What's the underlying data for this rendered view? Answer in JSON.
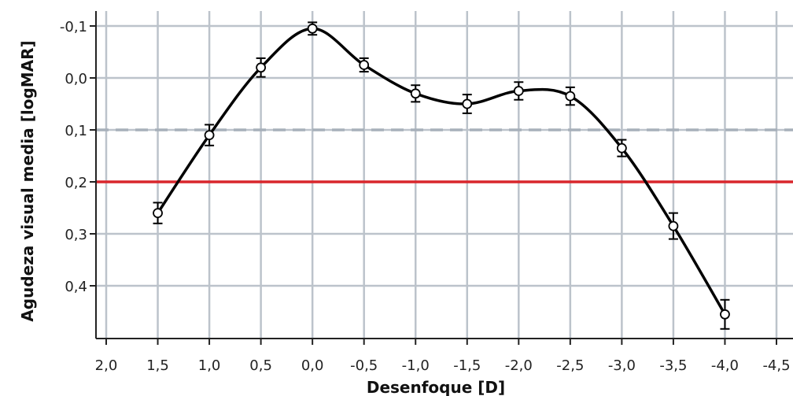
{
  "chart_data": {
    "type": "line",
    "title": "",
    "xlabel": "Desenfoque [D]",
    "ylabel": "Agudeza visual media [logMAR]",
    "xlim": [
      2.0,
      -4.5
    ],
    "ylim": [
      -0.1,
      0.5
    ],
    "y_inverted": true,
    "grid": true,
    "x_ticks": [
      2.0,
      1.5,
      1.0,
      0.5,
      0.0,
      -0.5,
      -1.0,
      -1.5,
      -2.0,
      -2.5,
      -3.0,
      -3.5,
      -4.0,
      -4.5
    ],
    "x_tick_labels": [
      "2,0",
      "1,5",
      "1,0",
      "0,5",
      "0,0",
      "-0,5",
      "-1,0",
      "-1,5",
      "-2,0",
      "-2,5",
      "-3,0",
      "-3,5",
      "-4,0",
      "-4,5"
    ],
    "y_ticks": [
      -0.1,
      0.0,
      0.1,
      0.2,
      0.3,
      0.4
    ],
    "y_tick_labels": [
      "-0,1",
      "0,0",
      "0,1",
      "0,2",
      "0,3",
      "0,4"
    ],
    "series": [
      {
        "x": [
          1.5,
          1.0,
          0.5,
          0.0,
          -0.5,
          -1.0,
          -1.5,
          -2.0,
          -2.5,
          -3.0,
          -3.5,
          -4.0
        ],
        "y": [
          0.26,
          0.11,
          -0.02,
          -0.095,
          -0.025,
          0.03,
          0.05,
          0.025,
          0.035,
          0.135,
          0.285,
          0.455
        ],
        "error": [
          0.02,
          0.02,
          0.018,
          0.012,
          0.013,
          0.016,
          0.018,
          0.017,
          0.017,
          0.016,
          0.025,
          0.028
        ],
        "color": "#000000"
      }
    ],
    "reference_lines": [
      {
        "y": 0.1,
        "style": "dashed",
        "color": "#a7b0ba"
      },
      {
        "y": 0.2,
        "style": "solid",
        "color": "#d9262c"
      }
    ],
    "colors": {
      "grid": "#bcc3cb",
      "axis": "#222222"
    }
  }
}
